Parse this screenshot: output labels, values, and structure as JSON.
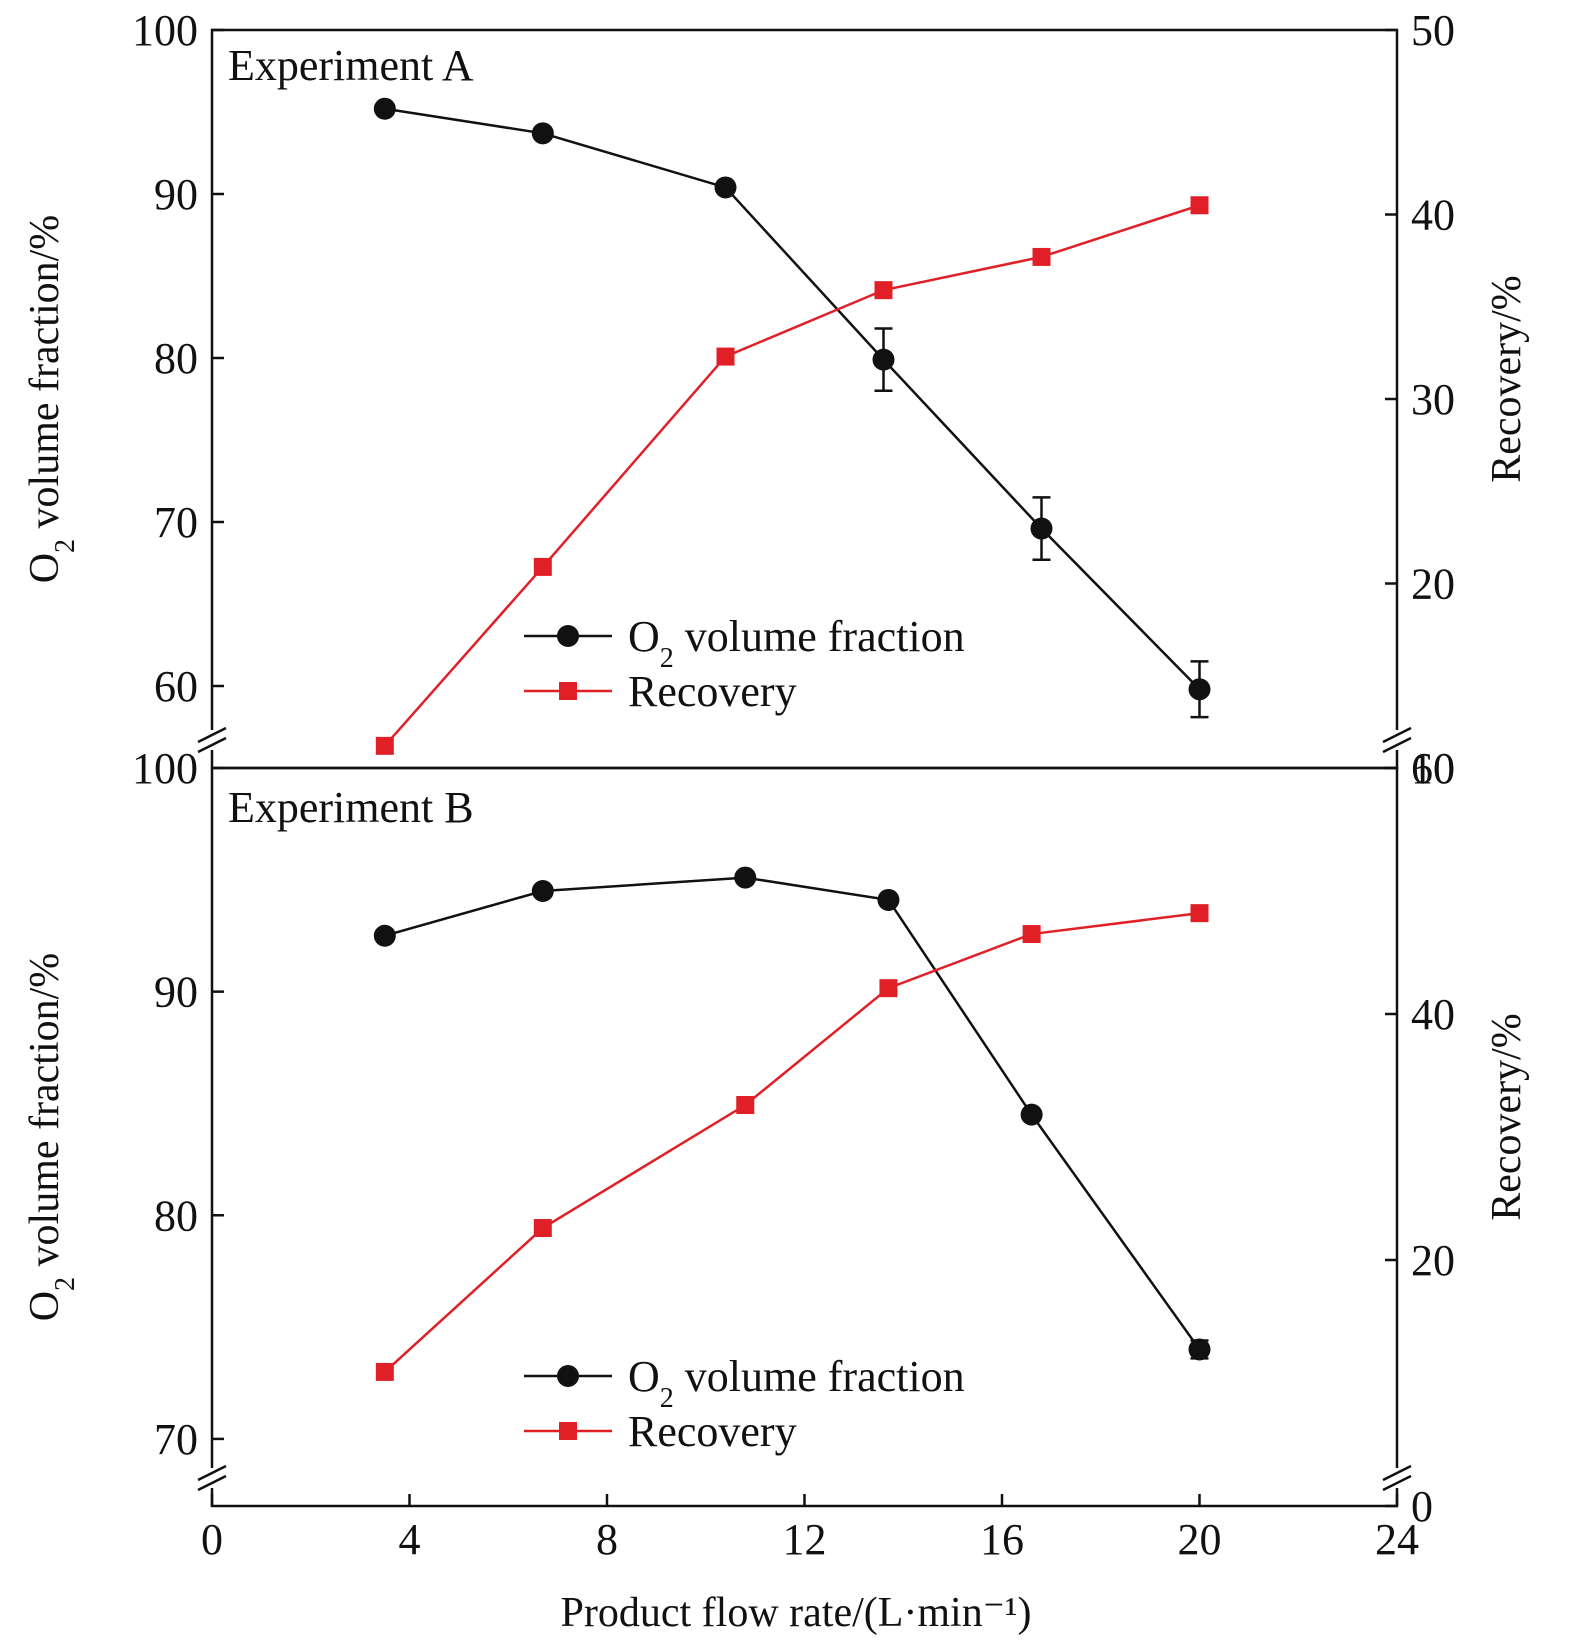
{
  "chart_data": [
    {
      "type": "line",
      "title": "Experiment A",
      "xlabel": "Product flow rate/(L·min⁻¹)",
      "ylabel_left": {
        "main": "O",
        "sub": "2",
        "rest": " volume fraction/%"
      },
      "ylabel_right": "Recovery/%",
      "xlim": [
        0,
        24
      ],
      "ylim_left": [
        55,
        100
      ],
      "ylim_right": [
        10,
        50
      ],
      "yticks_left": [
        60,
        70,
        80,
        90,
        100
      ],
      "yticks_right": [
        10,
        20,
        30,
        40,
        50
      ],
      "axis_break": true,
      "series": [
        {
          "name": "O2 volume fraction",
          "axis": "left",
          "color": "#111111",
          "marker": "circle",
          "x": [
            3.5,
            6.7,
            10.4,
            13.6,
            16.8,
            20.0
          ],
          "y": [
            95.2,
            93.7,
            90.4,
            79.9,
            69.6,
            59.8
          ],
          "error": [
            0,
            0,
            0,
            1.9,
            1.9,
            1.7
          ]
        },
        {
          "name": "Recovery",
          "axis": "right",
          "color": "#e02026",
          "marker": "square",
          "x": [
            3.5,
            6.7,
            10.4,
            13.6,
            16.8,
            20.0
          ],
          "y": [
            11.2,
            20.9,
            32.3,
            35.9,
            37.7,
            40.5
          ]
        }
      ],
      "legend": {
        "placement": "bottom-center",
        "entries": [
          {
            "main": "O",
            "sub": "2",
            "rest": " volume fraction"
          },
          {
            "main": "Recovery",
            "sub": "",
            "rest": ""
          }
        ]
      }
    },
    {
      "type": "line",
      "title": "Experiment B",
      "xlabel": "Product flow rate/(L·min⁻¹)",
      "ylabel_left": {
        "main": "O",
        "sub": "2",
        "rest": " volume fraction/%"
      },
      "ylabel_right": "Recovery/%",
      "xlim": [
        0,
        24
      ],
      "xticks": [
        0,
        4,
        8,
        12,
        16,
        20,
        24
      ],
      "ylim_left": [
        67,
        100
      ],
      "ylim_right": [
        0,
        60
      ],
      "yticks_left": [
        70,
        80,
        90,
        100
      ],
      "yticks_right": [
        0,
        20,
        40,
        60
      ],
      "axis_break": true,
      "series": [
        {
          "name": "O2 volume fraction",
          "axis": "left",
          "color": "#111111",
          "marker": "circle",
          "x": [
            3.5,
            6.7,
            10.8,
            13.7,
            16.6,
            20.0
          ],
          "y": [
            92.5,
            94.5,
            95.1,
            94.1,
            84.5,
            74.0
          ],
          "error": [
            0,
            0,
            0,
            0,
            0,
            0.4
          ]
        },
        {
          "name": "Recovery",
          "axis": "right",
          "color": "#e02026",
          "marker": "square",
          "x": [
            3.5,
            6.7,
            10.8,
            13.7,
            16.6,
            20.0
          ],
          "y": [
            10.9,
            22.6,
            32.6,
            42.1,
            46.5,
            48.2
          ]
        }
      ],
      "legend": {
        "placement": "bottom-center",
        "entries": [
          {
            "main": "O",
            "sub": "2",
            "rest": " volume fraction"
          },
          {
            "main": "Recovery",
            "sub": "",
            "rest": ""
          }
        ]
      }
    }
  ]
}
